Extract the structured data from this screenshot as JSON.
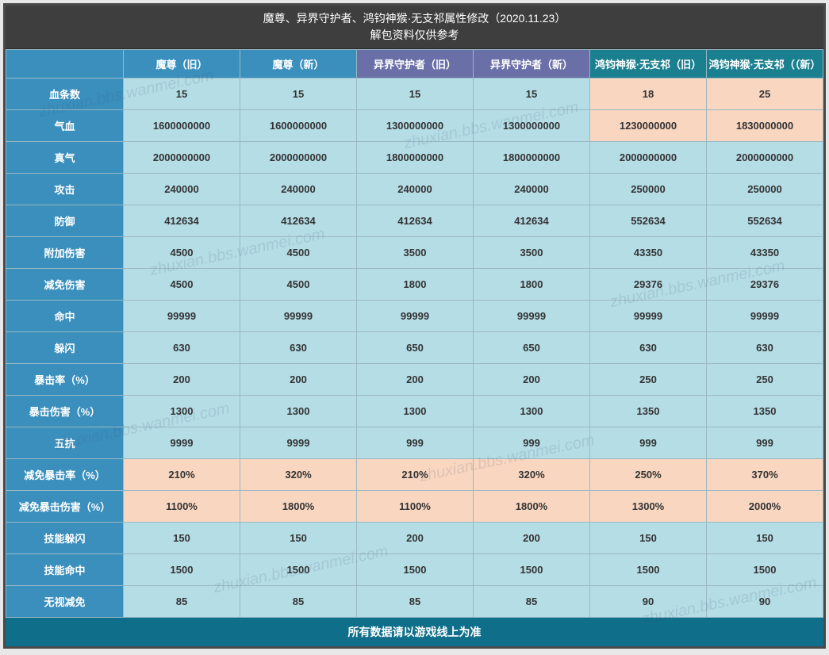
{
  "title_line1": "魔尊、异界守护者、鸿钧神猴·无支祁属性修改（2020.11.23）",
  "title_line2": "解包资料仅供参考",
  "footer": "所有数据请以游戏线上为准",
  "headers": [
    {
      "label": "",
      "bg": "#3a8fbd"
    },
    {
      "label": "魔尊（旧）",
      "bg": "#3a8fbd"
    },
    {
      "label": "魔尊（新）",
      "bg": "#3a8fbd"
    },
    {
      "label": "异界守护者（旧）",
      "bg": "#6a6fa8"
    },
    {
      "label": "异界守护者（新）",
      "bg": "#6a6fa8"
    },
    {
      "label": "鸿钧神猴·无支祁（旧）",
      "bg": "#1a7f8f"
    },
    {
      "label": "鸿钧神猴·无支祁（（新）",
      "bg": "#1a7f8f"
    }
  ],
  "rows": [
    {
      "label": "血条数",
      "cells": [
        {
          "v": "15"
        },
        {
          "v": "15"
        },
        {
          "v": "15"
        },
        {
          "v": "15"
        },
        {
          "v": "18",
          "hl": true,
          "cls": "green"
        },
        {
          "v": "25",
          "hl": true,
          "cls": "red"
        }
      ]
    },
    {
      "label": "气血",
      "cells": [
        {
          "v": "1600000000"
        },
        {
          "v": "1600000000"
        },
        {
          "v": "1300000000"
        },
        {
          "v": "1300000000"
        },
        {
          "v": "1230000000",
          "hl": true,
          "cls": "green"
        },
        {
          "v": "1830000000",
          "hl": true,
          "cls": "red"
        }
      ]
    },
    {
      "label": "真气",
      "cells": [
        {
          "v": "2000000000"
        },
        {
          "v": "2000000000"
        },
        {
          "v": "1800000000"
        },
        {
          "v": "1800000000"
        },
        {
          "v": "2000000000"
        },
        {
          "v": "2000000000"
        }
      ]
    },
    {
      "label": "攻击",
      "cells": [
        {
          "v": "240000"
        },
        {
          "v": "240000"
        },
        {
          "v": "240000"
        },
        {
          "v": "240000"
        },
        {
          "v": "250000"
        },
        {
          "v": "250000"
        }
      ]
    },
    {
      "label": "防御",
      "cells": [
        {
          "v": "412634"
        },
        {
          "v": "412634"
        },
        {
          "v": "412634"
        },
        {
          "v": "412634"
        },
        {
          "v": "552634"
        },
        {
          "v": "552634"
        }
      ]
    },
    {
      "label": "附加伤害",
      "cells": [
        {
          "v": "4500"
        },
        {
          "v": "4500"
        },
        {
          "v": "3500"
        },
        {
          "v": "3500"
        },
        {
          "v": "43350"
        },
        {
          "v": "43350"
        }
      ]
    },
    {
      "label": "减免伤害",
      "cells": [
        {
          "v": "4500"
        },
        {
          "v": "4500"
        },
        {
          "v": "1800"
        },
        {
          "v": "1800"
        },
        {
          "v": "29376"
        },
        {
          "v": "29376"
        }
      ]
    },
    {
      "label": "命中",
      "cells": [
        {
          "v": "99999"
        },
        {
          "v": "99999"
        },
        {
          "v": "99999"
        },
        {
          "v": "99999"
        },
        {
          "v": "99999"
        },
        {
          "v": "99999"
        }
      ]
    },
    {
      "label": "躲闪",
      "cells": [
        {
          "v": "630"
        },
        {
          "v": "630"
        },
        {
          "v": "650"
        },
        {
          "v": "650"
        },
        {
          "v": "630"
        },
        {
          "v": "630"
        }
      ]
    },
    {
      "label": "暴击率（%）",
      "cells": [
        {
          "v": "200"
        },
        {
          "v": "200"
        },
        {
          "v": "200"
        },
        {
          "v": "200"
        },
        {
          "v": "250"
        },
        {
          "v": "250"
        }
      ]
    },
    {
      "label": "暴击伤害（%）",
      "cells": [
        {
          "v": "1300"
        },
        {
          "v": "1300"
        },
        {
          "v": "1300"
        },
        {
          "v": "1300"
        },
        {
          "v": "1350"
        },
        {
          "v": "1350"
        }
      ]
    },
    {
      "label": "五抗",
      "cells": [
        {
          "v": "9999"
        },
        {
          "v": "9999"
        },
        {
          "v": "999"
        },
        {
          "v": "999"
        },
        {
          "v": "999"
        },
        {
          "v": "999"
        }
      ]
    },
    {
      "label": "减免暴击率（%）",
      "cells": [
        {
          "v": "210%",
          "hl": true,
          "cls": "green"
        },
        {
          "v": "320%",
          "hl": true,
          "cls": "red"
        },
        {
          "v": "210%",
          "hl": true,
          "cls": "green"
        },
        {
          "v": "320%",
          "hl": true,
          "cls": "red"
        },
        {
          "v": "250%",
          "hl": true,
          "cls": "green"
        },
        {
          "v": "370%",
          "hl": true,
          "cls": "red"
        }
      ]
    },
    {
      "label": "减免暴击伤害（%）",
      "cells": [
        {
          "v": "1100%",
          "hl": true,
          "cls": "green"
        },
        {
          "v": "1800%",
          "hl": true,
          "cls": "red"
        },
        {
          "v": "1100%",
          "hl": true,
          "cls": "green"
        },
        {
          "v": "1800%",
          "hl": true,
          "cls": "red"
        },
        {
          "v": "1300%",
          "hl": true,
          "cls": "green"
        },
        {
          "v": "2000%",
          "hl": true,
          "cls": "red"
        }
      ]
    },
    {
      "label": "技能躲闪",
      "cells": [
        {
          "v": "150"
        },
        {
          "v": "150"
        },
        {
          "v": "200"
        },
        {
          "v": "200"
        },
        {
          "v": "150"
        },
        {
          "v": "150"
        }
      ]
    },
    {
      "label": "技能命中",
      "cells": [
        {
          "v": "1500"
        },
        {
          "v": "1500"
        },
        {
          "v": "1500"
        },
        {
          "v": "1500"
        },
        {
          "v": "1500"
        },
        {
          "v": "1500"
        }
      ]
    },
    {
      "label": "无视减免",
      "cells": [
        {
          "v": "85"
        },
        {
          "v": "85"
        },
        {
          "v": "85"
        },
        {
          "v": "85"
        },
        {
          "v": "90"
        },
        {
          "v": "90"
        }
      ]
    }
  ],
  "watermark": "zhuxian.bbs.wanmei.com",
  "colors": {
    "title_bg": "#3e3e3e",
    "rowhdr_bg": "#3a8fbd",
    "cell_bg": "#b5dde6",
    "highlight_bg": "#f9d6c0",
    "footer_bg": "#0f6e8a",
    "border": "#9ab8c4"
  }
}
